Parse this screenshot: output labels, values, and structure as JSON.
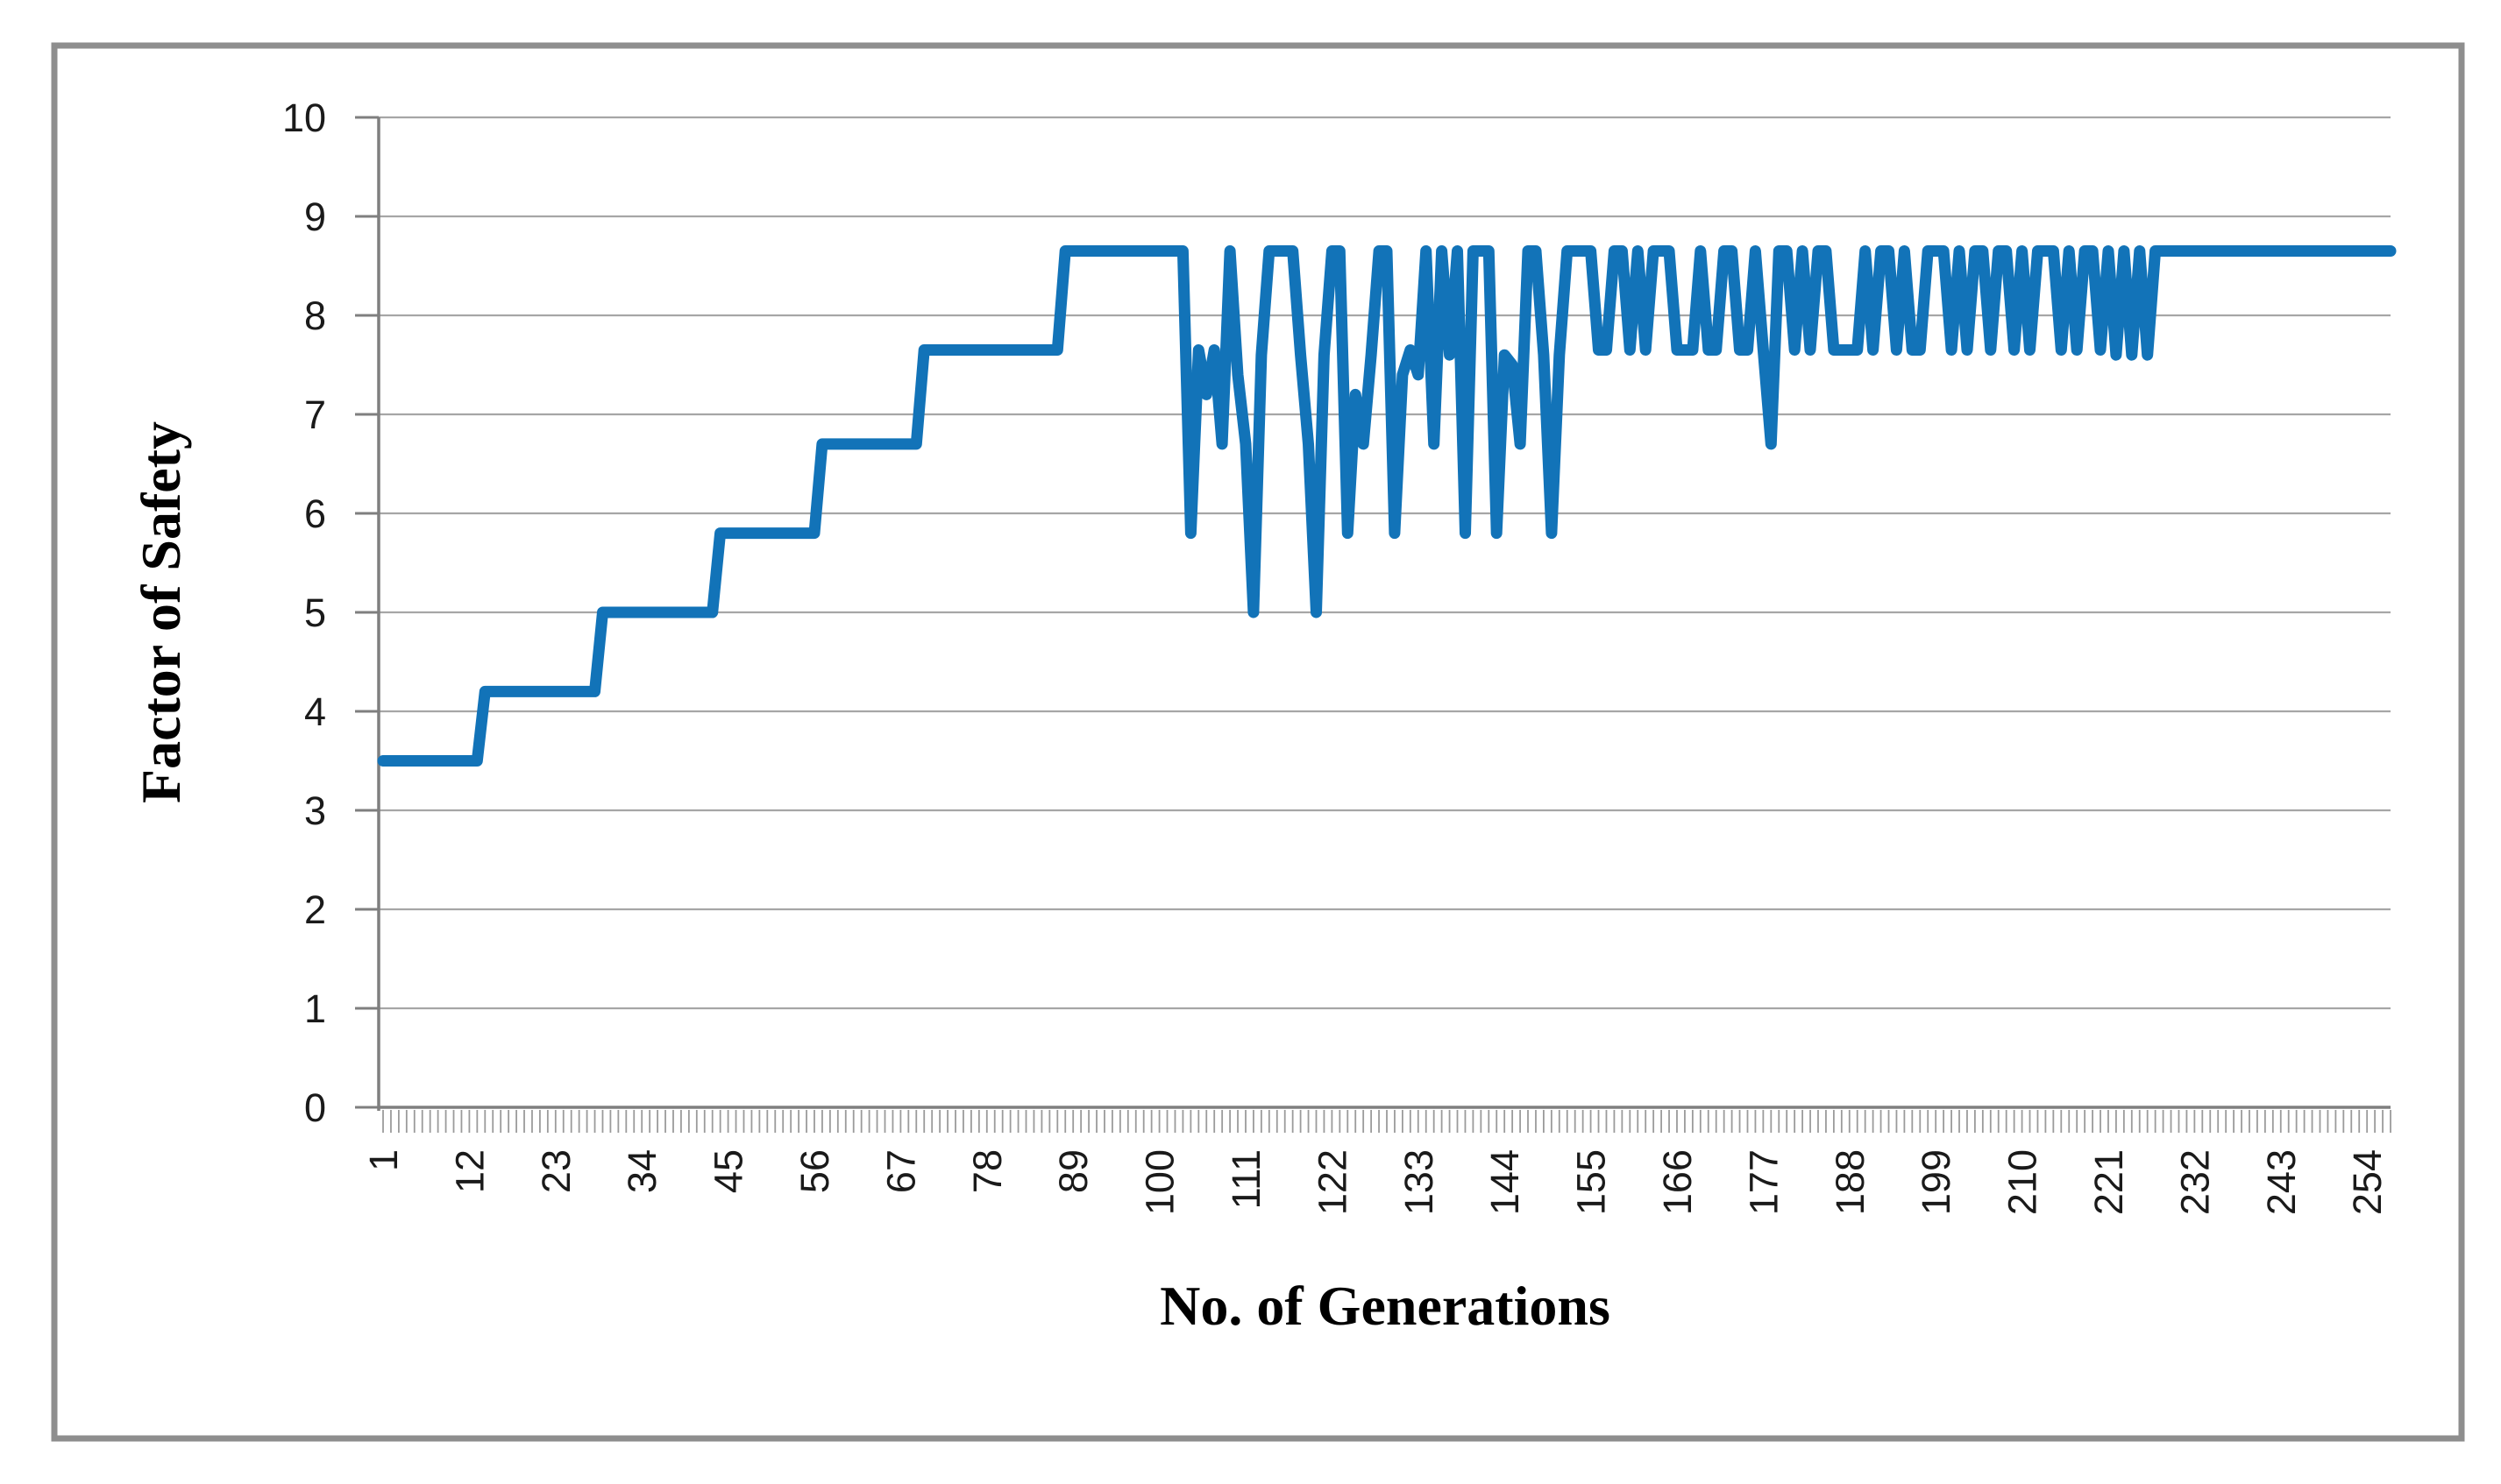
{
  "figure": {
    "background": "#ffffff",
    "border_color": "#8E8E8E",
    "plot_background": "#ffffff"
  },
  "colors": {
    "line": "#1273B8",
    "gridline": "#A6A6A6",
    "axis": "#7F7F7F",
    "tick": "#9B9B9B",
    "text": "#000000"
  },
  "chart_data": {
    "type": "line",
    "title": "",
    "xlabel": "No. of Generations",
    "ylabel": "Factor of Safety",
    "legend": "none",
    "grid": "horizontal",
    "xlim": [
      1,
      257
    ],
    "ylim": [
      0,
      10
    ],
    "y_ticks": [
      0,
      1,
      2,
      3,
      4,
      5,
      6,
      7,
      8,
      9,
      10
    ],
    "x_tick_labels": [
      1,
      12,
      23,
      34,
      45,
      56,
      67,
      78,
      89,
      100,
      111,
      122,
      133,
      144,
      155,
      166,
      177,
      188,
      199,
      210,
      221,
      232,
      243,
      254
    ],
    "x_minor_tick_step": 1,
    "x_tick_label_rotation_deg": -90,
    "series": [
      {
        "name": "Factor of Safety",
        "x_start": 1,
        "x_step": 1,
        "values": [
          3.5,
          3.5,
          3.5,
          3.5,
          3.5,
          3.5,
          3.5,
          3.5,
          3.5,
          3.5,
          3.5,
          3.5,
          3.5,
          4.2,
          4.2,
          4.2,
          4.2,
          4.2,
          4.2,
          4.2,
          4.2,
          4.2,
          4.2,
          4.2,
          4.2,
          4.2,
          4.2,
          4.2,
          5.0,
          5.0,
          5.0,
          5.0,
          5.0,
          5.0,
          5.0,
          5.0,
          5.0,
          5.0,
          5.0,
          5.0,
          5.0,
          5.0,
          5.0,
          5.8,
          5.8,
          5.8,
          5.8,
          5.8,
          5.8,
          5.8,
          5.8,
          5.8,
          5.8,
          5.8,
          5.8,
          5.8,
          6.7,
          6.7,
          6.7,
          6.7,
          6.7,
          6.7,
          6.7,
          6.7,
          6.7,
          6.7,
          6.7,
          6.7,
          6.7,
          7.65,
          7.65,
          7.65,
          7.65,
          7.65,
          7.65,
          7.65,
          7.65,
          7.65,
          7.65,
          7.65,
          7.65,
          7.65,
          7.65,
          7.65,
          7.65,
          7.65,
          7.65,
          8.65,
          8.65,
          8.65,
          8.65,
          8.65,
          8.65,
          8.65,
          8.65,
          8.65,
          8.65,
          8.65,
          8.65,
          8.65,
          8.65,
          8.65,
          8.65,
          5.8,
          7.65,
          7.2,
          7.65,
          6.7,
          8.65,
          7.4,
          6.7,
          5.0,
          7.6,
          8.65,
          8.65,
          8.65,
          8.65,
          7.6,
          6.7,
          5.0,
          7.6,
          8.65,
          8.65,
          5.8,
          7.2,
          6.7,
          7.6,
          8.65,
          8.65,
          5.8,
          7.4,
          7.65,
          7.4,
          8.65,
          6.7,
          8.65,
          7.6,
          8.65,
          5.8,
          8.65,
          8.65,
          8.65,
          5.8,
          7.6,
          7.5,
          6.7,
          8.65,
          8.65,
          7.6,
          5.8,
          7.6,
          8.65,
          8.65,
          8.65,
          8.65,
          7.65,
          7.65,
          8.65,
          8.65,
          7.65,
          8.65,
          7.65,
          8.65,
          8.65,
          8.65,
          7.65,
          7.65,
          7.65,
          8.65,
          7.65,
          7.65,
          8.65,
          8.65,
          7.65,
          7.65,
          8.65,
          7.65,
          6.7,
          8.65,
          8.65,
          7.65,
          8.65,
          7.65,
          8.65,
          8.65,
          7.65,
          7.65,
          7.65,
          7.65,
          8.65,
          7.65,
          8.65,
          8.65,
          7.65,
          8.65,
          7.65,
          7.65,
          8.65,
          8.65,
          8.65,
          7.65,
          8.65,
          7.65,
          8.65,
          8.65,
          7.65,
          8.65,
          8.65,
          7.65,
          8.65,
          7.65,
          8.65,
          8.65,
          8.65,
          7.65,
          8.65,
          7.65,
          8.65,
          8.65,
          7.65,
          8.65,
          7.6,
          8.65,
          7.6,
          8.65,
          7.6,
          8.65,
          8.65,
          8.65,
          8.65,
          8.65,
          8.65,
          8.65,
          8.65,
          8.65,
          8.65,
          8.65,
          8.65,
          8.65,
          8.65,
          8.65,
          8.65,
          8.65,
          8.65,
          8.65,
          8.65,
          8.65,
          8.65,
          8.65,
          8.65,
          8.65,
          8.65,
          8.65,
          8.65,
          8.65,
          8.65,
          8.65
        ]
      }
    ]
  }
}
